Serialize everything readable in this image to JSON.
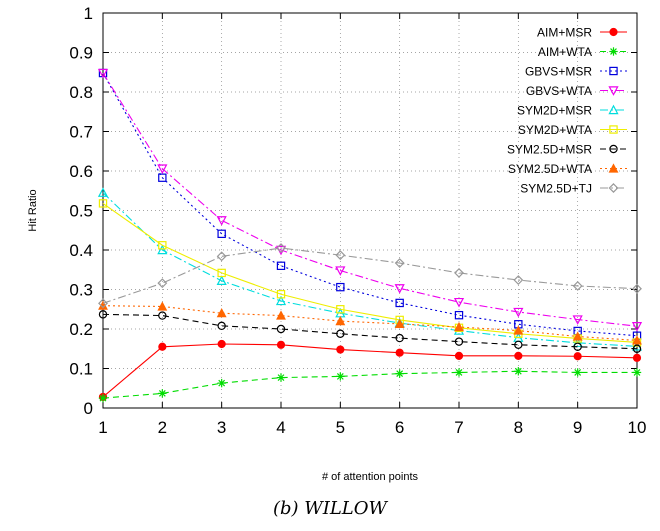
{
  "caption": "(b) WILLOW",
  "chart_data": {
    "type": "line",
    "title": "",
    "xlabel": "# of attention points",
    "ylabel": "Hit Ratio",
    "x": [
      1,
      2,
      3,
      4,
      5,
      6,
      7,
      8,
      9,
      10
    ],
    "xlim": [
      1,
      10
    ],
    "ylim": [
      0,
      1
    ],
    "yticks": [
      "0",
      "0.1",
      "0.2",
      "0.3",
      "0.4",
      "0.5",
      "0.6",
      "0.7",
      "0.8",
      "0.9",
      "1"
    ],
    "xticks": [
      "1",
      "2",
      "3",
      "4",
      "5",
      "6",
      "7",
      "8",
      "9",
      "10"
    ],
    "grid": true,
    "legend_position": "top-right",
    "series": [
      {
        "name": "AIM+MSR",
        "color": "#ff0000",
        "marker": "filled-circle",
        "dash": "solid",
        "values": [
          0.028,
          0.155,
          0.162,
          0.16,
          0.148,
          0.14,
          0.132,
          0.132,
          0.131,
          0.127
        ]
      },
      {
        "name": "AIM+WTA",
        "color": "#00dd00",
        "marker": "asterisk",
        "dash": "dashed",
        "values": [
          0.025,
          0.037,
          0.063,
          0.077,
          0.08,
          0.087,
          0.09,
          0.093,
          0.09,
          0.09
        ]
      },
      {
        "name": "GBVS+MSR",
        "color": "#0000dd",
        "marker": "open-square",
        "dash": "dotted",
        "values": [
          0.848,
          0.583,
          0.441,
          0.36,
          0.306,
          0.266,
          0.235,
          0.212,
          0.195,
          0.183
        ]
      },
      {
        "name": "GBVS+WTA",
        "color": "#ee00ee",
        "marker": "open-triangle-down",
        "dash": "dashdot",
        "values": [
          0.848,
          0.606,
          0.475,
          0.4,
          0.348,
          0.303,
          0.268,
          0.243,
          0.224,
          0.207
        ]
      },
      {
        "name": "SYM2D+MSR",
        "color": "#00dddd",
        "marker": "open-triangle-up",
        "dash": "dashdot",
        "values": [
          0.545,
          0.4,
          0.322,
          0.271,
          0.24,
          0.215,
          0.196,
          0.178,
          0.165,
          0.156
        ]
      },
      {
        "name": "SYM2D+WTA",
        "color": "#eeee00",
        "marker": "open-square",
        "dash": "solid",
        "values": [
          0.518,
          0.412,
          0.342,
          0.288,
          0.25,
          0.223,
          0.203,
          0.188,
          0.176,
          0.166
        ]
      },
      {
        "name": "SYM2.5D+MSR",
        "color": "#000000",
        "marker": "open-circle",
        "dash": "dashed",
        "values": [
          0.237,
          0.234,
          0.208,
          0.2,
          0.188,
          0.177,
          0.168,
          0.16,
          0.155,
          0.15
        ]
      },
      {
        "name": "SYM2.5D+WTA",
        "color": "#ff6600",
        "marker": "filled-triangle-up",
        "dash": "dotted",
        "values": [
          0.259,
          0.257,
          0.24,
          0.234,
          0.22,
          0.213,
          0.205,
          0.196,
          0.181,
          0.171
        ]
      },
      {
        "name": "SYM2.5D+TJ",
        "color": "#999999",
        "marker": "open-diamond",
        "dash": "dashdot",
        "values": [
          0.265,
          0.316,
          0.384,
          0.405,
          0.387,
          0.367,
          0.342,
          0.324,
          0.309,
          0.302
        ]
      }
    ]
  }
}
